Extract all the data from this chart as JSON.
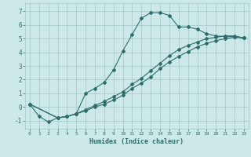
{
  "xlabel": "Humidex (Indice chaleur)",
  "bg_color": "#cce8e8",
  "grid_color": "#aacccc",
  "line_color": "#2d6e6a",
  "xlim": [
    -0.5,
    23.5
  ],
  "ylim": [
    -1.6,
    7.6
  ],
  "xticks": [
    0,
    1,
    2,
    3,
    4,
    5,
    6,
    7,
    8,
    9,
    10,
    11,
    12,
    13,
    14,
    15,
    16,
    17,
    18,
    19,
    20,
    21,
    22,
    23
  ],
  "yticks": [
    -1,
    0,
    1,
    2,
    3,
    4,
    5,
    6,
    7
  ],
  "line1_x": [
    0,
    1,
    2,
    3,
    4,
    5,
    6,
    7,
    8,
    9,
    10,
    11,
    12,
    13,
    14,
    15,
    16,
    17,
    18,
    19,
    20,
    21,
    22,
    23
  ],
  "line1_y": [
    0.2,
    -0.7,
    -1.1,
    -0.8,
    -0.7,
    -0.5,
    1.0,
    1.35,
    1.8,
    2.7,
    4.1,
    5.3,
    6.5,
    6.9,
    6.9,
    6.7,
    5.85,
    5.85,
    5.7,
    5.35,
    5.2,
    5.15,
    5.15,
    5.05
  ],
  "line2_x": [
    0,
    3,
    4,
    5,
    6,
    7,
    8,
    9,
    10,
    11,
    12,
    13,
    14,
    15,
    16,
    17,
    18,
    19,
    20,
    21,
    22,
    23
  ],
  "line2_y": [
    0.2,
    -0.8,
    -0.7,
    -0.5,
    -0.3,
    0.0,
    0.2,
    0.5,
    0.85,
    1.35,
    1.75,
    2.2,
    2.8,
    3.3,
    3.7,
    4.05,
    4.4,
    4.65,
    4.85,
    5.0,
    5.1,
    5.05
  ],
  "line3_x": [
    0,
    3,
    4,
    5,
    6,
    7,
    8,
    9,
    10,
    11,
    12,
    13,
    14,
    15,
    16,
    17,
    18,
    19,
    20,
    21,
    22,
    23
  ],
  "line3_y": [
    0.2,
    -0.8,
    -0.7,
    -0.5,
    -0.2,
    0.1,
    0.4,
    0.75,
    1.1,
    1.65,
    2.1,
    2.65,
    3.2,
    3.75,
    4.2,
    4.5,
    4.75,
    5.0,
    5.1,
    5.2,
    5.2,
    5.05
  ]
}
